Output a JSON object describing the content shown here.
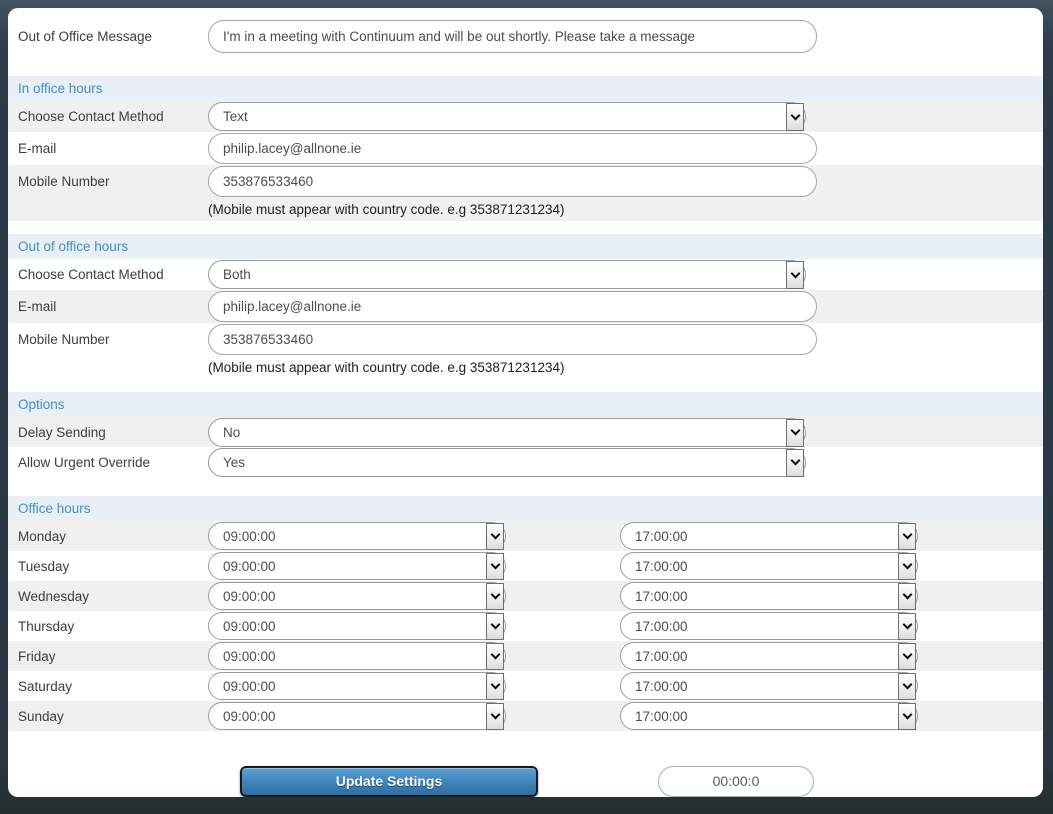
{
  "form": {
    "message": {
      "label": "Out of Office Message",
      "value": "I'm in a meeting with Continuum and will be out shortly.  Please take a message"
    },
    "in_office": {
      "title": "In office hours",
      "contact_method": {
        "label": "Choose Contact Method",
        "value": "Text"
      },
      "email": {
        "label": "E-mail",
        "value": "philip.lacey@allnone.ie"
      },
      "mobile": {
        "label": "Mobile Number",
        "value": "353876533460",
        "note": "(Mobile must appear with country code. e.g 353871231234)"
      }
    },
    "out_of_office": {
      "title": "Out of office hours",
      "contact_method": {
        "label": "Choose Contact Method",
        "value": "Both"
      },
      "email": {
        "label": "E-mail",
        "value": "philip.lacey@allnone.ie"
      },
      "mobile": {
        "label": "Mobile Number",
        "value": "353876533460",
        "note": "(Mobile must appear with country code. e.g 353871231234)"
      }
    },
    "options": {
      "title": "Options",
      "delay_sending": {
        "label": "Delay Sending",
        "value": "No"
      },
      "allow_urgent_override": {
        "label": "Allow Urgent Override",
        "value": "Yes"
      }
    },
    "office_hours": {
      "title": "Office hours",
      "days": [
        {
          "label": "Monday",
          "start": "09:00:00",
          "end": "17:00:00"
        },
        {
          "label": "Tuesday",
          "start": "09:00:00",
          "end": "17:00:00"
        },
        {
          "label": "Wednesday",
          "start": "09:00:00",
          "end": "17:00:00"
        },
        {
          "label": "Thursday",
          "start": "09:00:00",
          "end": "17:00:00"
        },
        {
          "label": "Friday",
          "start": "09:00:00",
          "end": "17:00:00"
        },
        {
          "label": "Saturday",
          "start": "09:00:00",
          "end": "17:00:00"
        },
        {
          "label": "Sunday",
          "start": "09:00:00",
          "end": "17:00:00"
        }
      ]
    },
    "footer": {
      "update_button": "Update Settings",
      "timer_value": "00:00:0"
    },
    "colors": {
      "frame_background": "#2d3b49",
      "section_band_background": "#e8eff7",
      "section_title_text": "#3e8fcb",
      "stripe_row_background": "#f0f0ef",
      "button_gradient_top": "#5ba0d4",
      "button_gradient_bottom": "#2e6da4",
      "button_border": "#17191c"
    }
  }
}
